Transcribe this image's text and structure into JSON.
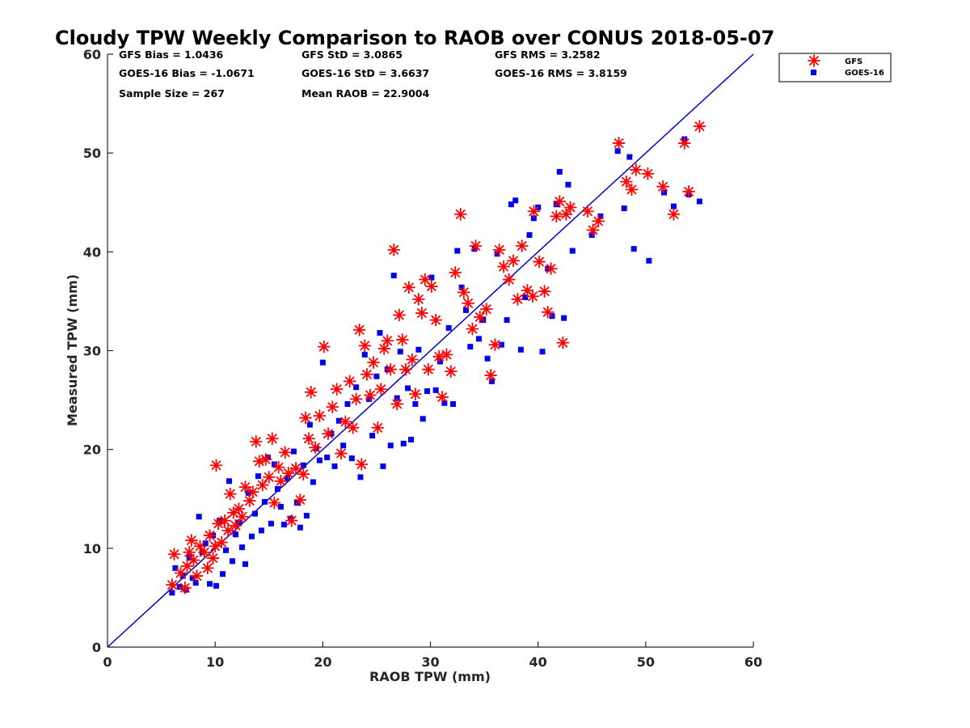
{
  "chart_data": {
    "type": "scatter",
    "title": "Cloudy TPW Weekly Comparison to RAOB over CONUS 2018-05-07",
    "xlabel": "RAOB TPW (mm)",
    "ylabel": "Measured TPW (mm)",
    "xlim": [
      0,
      60
    ],
    "ylim": [
      0,
      60
    ],
    "xticks": [
      "0",
      "10",
      "20",
      "30",
      "40",
      "50",
      "60"
    ],
    "yticks": [
      "0",
      "10",
      "20",
      "30",
      "40",
      "50",
      "60"
    ],
    "grid": false,
    "legend_position": "top-right",
    "reference_line": {
      "type": "one-to-one",
      "color": "#0000cc"
    },
    "stats": [
      "GFS Bias = 1.0436",
      "GFS StD = 3.0865",
      "GFS RMS = 3.2582",
      "GOES-16 Bias = -1.0671",
      "GOES-16 StD = 3.6637",
      "GOES-16 RMS = 3.8159",
      "Sample Size = 267",
      "Mean RAOB = 22.9004"
    ],
    "series": [
      {
        "name": "GFS",
        "marker": "asterisk",
        "color": "#ff0000",
        "points": [
          [
            6,
            6.3
          ],
          [
            6.2,
            9.4
          ],
          [
            6.8,
            7.5
          ],
          [
            7.2,
            6.0
          ],
          [
            7.4,
            8.2
          ],
          [
            7.6,
            9.6
          ],
          [
            7.8,
            10.8
          ],
          [
            8,
            8.8
          ],
          [
            8.3,
            7.2
          ],
          [
            8.6,
            10.2
          ],
          [
            9,
            9.6
          ],
          [
            9.3,
            8.0
          ],
          [
            9.5,
            11.3
          ],
          [
            9.8,
            9.0
          ],
          [
            10,
            10.2
          ],
          [
            10.1,
            18.4
          ],
          [
            10.3,
            12.5
          ],
          [
            10.6,
            10.6
          ],
          [
            10.9,
            12.8
          ],
          [
            11.2,
            11.8
          ],
          [
            11.4,
            15.5
          ],
          [
            11.7,
            13.6
          ],
          [
            11.9,
            12.3
          ],
          [
            12.2,
            14.0
          ],
          [
            12.5,
            13.2
          ],
          [
            12.8,
            16.2
          ],
          [
            13.2,
            14.8
          ],
          [
            13.5,
            15.7
          ],
          [
            13.8,
            20.8
          ],
          [
            14.1,
            18.8
          ],
          [
            14.4,
            16.4
          ],
          [
            14.7,
            19.0
          ],
          [
            15,
            17.2
          ],
          [
            15.3,
            21.1
          ],
          [
            15.5,
            14.6
          ],
          [
            15.9,
            18.2
          ],
          [
            16.1,
            16.8
          ],
          [
            16.5,
            19.7
          ],
          [
            16.8,
            17.6
          ],
          [
            17.1,
            12.8
          ],
          [
            17.5,
            18.1
          ],
          [
            17.9,
            14.9
          ],
          [
            18.2,
            17.5
          ],
          [
            18.4,
            23.2
          ],
          [
            18.7,
            21.1
          ],
          [
            18.9,
            25.8
          ],
          [
            19.3,
            20.2
          ],
          [
            19.7,
            23.4
          ],
          [
            20.1,
            30.4
          ],
          [
            20.5,
            21.6
          ],
          [
            20.9,
            24.3
          ],
          [
            21.3,
            26.1
          ],
          [
            21.7,
            19.6
          ],
          [
            22.1,
            22.8
          ],
          [
            22.5,
            26.9
          ],
          [
            22.8,
            22.2
          ],
          [
            23.1,
            25.1
          ],
          [
            23.4,
            32.1
          ],
          [
            23.6,
            18.5
          ],
          [
            23.9,
            30.5
          ],
          [
            24.1,
            27.6
          ],
          [
            24.4,
            25.5
          ],
          [
            24.7,
            28.8
          ],
          [
            25.1,
            22.2
          ],
          [
            25.4,
            26.1
          ],
          [
            25.7,
            30.2
          ],
          [
            26,
            31.0
          ],
          [
            26.3,
            28.1
          ],
          [
            26.6,
            40.2
          ],
          [
            26.9,
            24.6
          ],
          [
            27.1,
            33.6
          ],
          [
            27.4,
            31.1
          ],
          [
            27.7,
            28.1
          ],
          [
            28,
            36.4
          ],
          [
            28.3,
            29.1
          ],
          [
            28.6,
            25.6
          ],
          [
            28.9,
            35.2
          ],
          [
            29.2,
            33.8
          ],
          [
            29.5,
            37.2
          ],
          [
            29.8,
            28.1
          ],
          [
            30.1,
            36.5
          ],
          [
            30.5,
            33.1
          ],
          [
            30.8,
            29.4
          ],
          [
            31.1,
            25.3
          ],
          [
            31.5,
            29.6
          ],
          [
            31.9,
            27.9
          ],
          [
            32.3,
            37.9
          ],
          [
            32.8,
            43.8
          ],
          [
            33.1,
            35.9
          ],
          [
            33.5,
            34.8
          ],
          [
            33.9,
            32.2
          ],
          [
            34.2,
            40.6
          ],
          [
            34.6,
            33.4
          ],
          [
            35.2,
            34.2
          ],
          [
            35.6,
            27.5
          ],
          [
            36,
            30.6
          ],
          [
            36.4,
            40.2
          ],
          [
            36.8,
            38.5
          ],
          [
            37.3,
            37.2
          ],
          [
            37.7,
            39.1
          ],
          [
            38.1,
            35.2
          ],
          [
            38.5,
            40.6
          ],
          [
            39,
            36.1
          ],
          [
            39.5,
            35.5
          ],
          [
            39.6,
            44.1
          ],
          [
            40.1,
            39.0
          ],
          [
            40.6,
            36.0
          ],
          [
            40.9,
            33.9
          ],
          [
            41.2,
            38.3
          ],
          [
            41.7,
            43.6
          ],
          [
            42,
            45.1
          ],
          [
            42.3,
            30.8
          ],
          [
            42.6,
            43.8
          ],
          [
            43,
            44.5
          ],
          [
            44.6,
            44.1
          ],
          [
            45.1,
            42.2
          ],
          [
            45.6,
            43.1
          ],
          [
            47.5,
            51.0
          ],
          [
            48.2,
            47.1
          ],
          [
            48.7,
            46.3
          ],
          [
            49.1,
            48.3
          ],
          [
            50.2,
            47.9
          ],
          [
            51.6,
            46.6
          ],
          [
            52.6,
            43.8
          ],
          [
            53.6,
            51.0
          ],
          [
            54,
            46.1
          ],
          [
            55,
            52.7
          ]
        ]
      },
      {
        "name": "GOES-16",
        "marker": "square",
        "color": "#0000ee",
        "points": [
          [
            6,
            5.5
          ],
          [
            6.3,
            8.0
          ],
          [
            6.7,
            6.1
          ],
          [
            7,
            7.2
          ],
          [
            7.3,
            5.8
          ],
          [
            7.6,
            9.1
          ],
          [
            7.9,
            7.0
          ],
          [
            8.2,
            6.5
          ],
          [
            8.5,
            13.2
          ],
          [
            8.8,
            9.6
          ],
          [
            9.1,
            10.5
          ],
          [
            9.5,
            6.4
          ],
          [
            9.8,
            11.3
          ],
          [
            10.1,
            6.2
          ],
          [
            10.4,
            12.8
          ],
          [
            10.7,
            7.4
          ],
          [
            11,
            9.8
          ],
          [
            11.3,
            16.8
          ],
          [
            11.6,
            8.7
          ],
          [
            11.9,
            11.4
          ],
          [
            12.2,
            12.6
          ],
          [
            12.5,
            10.1
          ],
          [
            12.8,
            8.4
          ],
          [
            13.1,
            15.6
          ],
          [
            13.4,
            11.2
          ],
          [
            13.7,
            13.5
          ],
          [
            14,
            17.3
          ],
          [
            14.3,
            11.8
          ],
          [
            14.6,
            14.7
          ],
          [
            14.9,
            19.2
          ],
          [
            15.2,
            12.5
          ],
          [
            15.5,
            18.5
          ],
          [
            15.8,
            16.0
          ],
          [
            16.1,
            14.2
          ],
          [
            16.4,
            12.4
          ],
          [
            16.7,
            17.1
          ],
          [
            17,
            13.0
          ],
          [
            17.3,
            19.8
          ],
          [
            17.6,
            14.6
          ],
          [
            17.9,
            12.1
          ],
          [
            18.2,
            18.4
          ],
          [
            18.5,
            13.3
          ],
          [
            18.8,
            22.5
          ],
          [
            19.1,
            16.7
          ],
          [
            19.4,
            20.1
          ],
          [
            19.7,
            18.9
          ],
          [
            20,
            28.8
          ],
          [
            20.4,
            19.2
          ],
          [
            20.8,
            21.6
          ],
          [
            21.1,
            18.3
          ],
          [
            21.5,
            22.9
          ],
          [
            21.9,
            20.4
          ],
          [
            22.3,
            24.6
          ],
          [
            22.7,
            19.1
          ],
          [
            23.1,
            26.3
          ],
          [
            23.5,
            17.2
          ],
          [
            23.9,
            29.6
          ],
          [
            24.3,
            25.1
          ],
          [
            24.6,
            21.4
          ],
          [
            25,
            27.4
          ],
          [
            25.3,
            31.8
          ],
          [
            25.6,
            18.3
          ],
          [
            26,
            28.1
          ],
          [
            26.3,
            20.4
          ],
          [
            26.6,
            37.6
          ],
          [
            26.9,
            25.2
          ],
          [
            27.2,
            29.9
          ],
          [
            27.5,
            20.6
          ],
          [
            27.9,
            26.2
          ],
          [
            28.2,
            21.0
          ],
          [
            28.6,
            24.6
          ],
          [
            28.9,
            30.1
          ],
          [
            29.3,
            23.1
          ],
          [
            29.7,
            25.9
          ],
          [
            30.1,
            37.4
          ],
          [
            30.5,
            26.0
          ],
          [
            30.9,
            28.9
          ],
          [
            31.3,
            24.7
          ],
          [
            31.7,
            32.3
          ],
          [
            32.1,
            24.6
          ],
          [
            32.5,
            40.1
          ],
          [
            32.9,
            36.4
          ],
          [
            33.3,
            34.1
          ],
          [
            33.7,
            30.4
          ],
          [
            34.1,
            40.3
          ],
          [
            34.5,
            31.2
          ],
          [
            34.9,
            33.1
          ],
          [
            35.3,
            29.2
          ],
          [
            35.7,
            26.9
          ],
          [
            36.2,
            39.8
          ],
          [
            36.6,
            30.6
          ],
          [
            37.1,
            33.1
          ],
          [
            37.5,
            44.8
          ],
          [
            37.9,
            45.2
          ],
          [
            38.4,
            30.1
          ],
          [
            38.8,
            35.4
          ],
          [
            39.2,
            41.7
          ],
          [
            39.6,
            43.4
          ],
          [
            40,
            44.5
          ],
          [
            40.4,
            29.9
          ],
          [
            40.9,
            38.3
          ],
          [
            41.3,
            33.5
          ],
          [
            41.7,
            44.8
          ],
          [
            42,
            48.1
          ],
          [
            42.4,
            33.3
          ],
          [
            42.8,
            46.8
          ],
          [
            43.2,
            40.1
          ],
          [
            45,
            41.7
          ],
          [
            45.8,
            43.6
          ],
          [
            47.4,
            50.2
          ],
          [
            48,
            44.4
          ],
          [
            48.5,
            49.6
          ],
          [
            48.9,
            40.3
          ],
          [
            50.3,
            39.1
          ],
          [
            51.7,
            46.0
          ],
          [
            52.6,
            44.6
          ],
          [
            53.6,
            51.4
          ],
          [
            54,
            45.8
          ],
          [
            55,
            45.1
          ]
        ]
      }
    ]
  }
}
